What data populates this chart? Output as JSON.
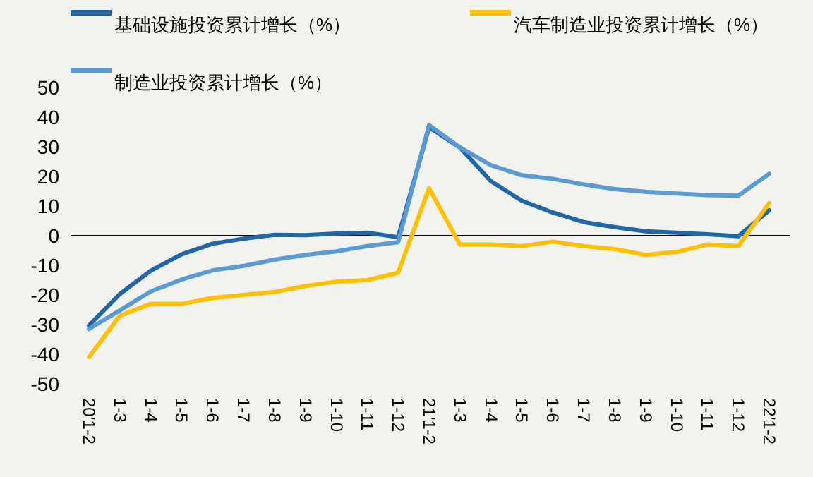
{
  "chart_data": {
    "type": "line",
    "categories": [
      "20'1-2",
      "1-3",
      "1-4",
      "1-5",
      "1-6",
      "1-7",
      "1-8",
      "1-9",
      "1-10",
      "1-11",
      "1-12",
      "21'1-2",
      "1-3",
      "1-4",
      "1-5",
      "1-6",
      "1-7",
      "1-8",
      "1-9",
      "1-10",
      "1-11",
      "1-12",
      "22'1-2"
    ],
    "series": [
      {
        "name": "基础设施投资累计增长（%）",
        "color": "#2166a6",
        "values": [
          -30.3,
          -19.7,
          -11.8,
          -6.3,
          -2.7,
          -1.0,
          0.3,
          0.2,
          0.7,
          1.0,
          -0.5,
          36.6,
          29.7,
          18.4,
          11.8,
          7.8,
          4.6,
          2.9,
          1.5,
          1.0,
          0.5,
          -0.2,
          8.6
        ]
      },
      {
        "name": "汽车制造业投资累计增长（%）",
        "color": "#ffc000",
        "values": [
          -41,
          -27,
          -23,
          -23,
          -21,
          -20,
          -19,
          -17,
          -15.5,
          -15,
          -12.5,
          16,
          -3,
          -3,
          -3.5,
          -2,
          -3.5,
          -4.5,
          -6.5,
          -5.5,
          -3,
          -3.5,
          11
        ]
      },
      {
        "name": "制造业投资累计增长（%）",
        "color": "#5b9bd5",
        "values": [
          -31.5,
          -25.2,
          -18.8,
          -14.8,
          -11.7,
          -10.2,
          -8.1,
          -6.5,
          -5.3,
          -3.5,
          -2.2,
          37.3,
          29.8,
          23.8,
          20.4,
          19.2,
          17.3,
          15.7,
          14.8,
          14.2,
          13.7,
          13.5,
          20.9
        ]
      }
    ],
    "ylim": [
      -50,
      50
    ],
    "yticks": [
      -50,
      -40,
      -30,
      -20,
      -10,
      0,
      10,
      20,
      30,
      40,
      50
    ],
    "ref_lines": [
      {
        "axis": "y",
        "value": 0,
        "color": "#000000"
      }
    ],
    "grid": false,
    "legend": "top",
    "marker": "none",
    "line_style": "solid"
  }
}
